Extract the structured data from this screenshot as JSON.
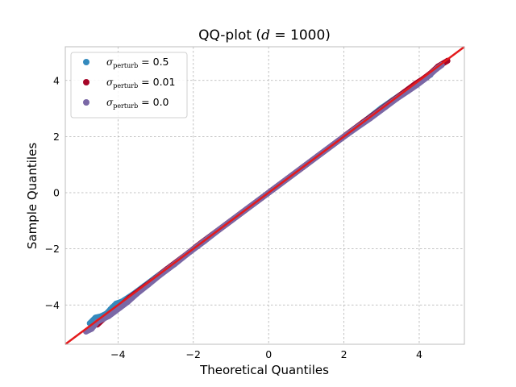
{
  "chart_data": {
    "type": "scatter",
    "title_prefix": "QQ-plot (",
    "title_var": "d",
    "title_eq": " = ",
    "title_val": "1000",
    "title_suffix": ")",
    "xlabel": "Theoretical Quantiles",
    "ylabel": "Sample Quantiles",
    "xlim": [
      -5.4,
      5.2
    ],
    "ylim": [
      -5.4,
      5.2
    ],
    "xticks": [
      -4,
      -2,
      0,
      2,
      4
    ],
    "yticks": [
      -4,
      -2,
      0,
      2,
      4
    ],
    "xtick_labels": [
      "−4",
      "−2",
      "0",
      "2",
      "4"
    ],
    "ytick_labels": [
      "−4",
      "−2",
      "0",
      "2",
      "4"
    ],
    "grid": true,
    "legend_position": "top-left",
    "legend_symbol": "σ",
    "legend_subscript": "perturb",
    "series": [
      {
        "name": "σperturb = 0.5",
        "label_value": " = 0.5",
        "color": "#348ABD",
        "points": [
          [
            -4.75,
            -4.65
          ],
          [
            -4.6,
            -4.45
          ],
          [
            -4.45,
            -4.4
          ],
          [
            -4.3,
            -4.3
          ],
          [
            -4.2,
            -4.15
          ],
          [
            -4.05,
            -3.95
          ],
          [
            -3.9,
            -3.88
          ],
          [
            -3.6,
            -3.62
          ],
          [
            -3.3,
            -3.32
          ],
          [
            -3.0,
            -3.02
          ],
          [
            -2.6,
            -2.62
          ],
          [
            -2.2,
            -2.22
          ],
          [
            -1.8,
            -1.8
          ],
          [
            -1.4,
            -1.4
          ],
          [
            -1.0,
            -1.0
          ],
          [
            -0.6,
            -0.6
          ],
          [
            -0.2,
            -0.2
          ],
          [
            0.2,
            0.2
          ],
          [
            0.6,
            0.6
          ],
          [
            1.0,
            1.0
          ],
          [
            1.4,
            1.4
          ],
          [
            1.8,
            1.8
          ],
          [
            2.2,
            2.2
          ],
          [
            2.6,
            2.6
          ],
          [
            3.0,
            3.02
          ],
          [
            3.3,
            3.3
          ],
          [
            3.6,
            3.58
          ],
          [
            3.85,
            3.82
          ],
          [
            4.05,
            4.0
          ],
          [
            4.3,
            4.2
          ]
        ]
      },
      {
        "name": "σperturb = 0.01",
        "label_value": " = 0.01",
        "color": "#A60628",
        "points": [
          [
            -4.55,
            -4.7
          ],
          [
            -4.35,
            -4.45
          ],
          [
            -4.15,
            -4.25
          ],
          [
            -3.95,
            -4.05
          ],
          [
            -3.7,
            -3.75
          ],
          [
            -3.4,
            -3.45
          ],
          [
            -3.1,
            -3.15
          ],
          [
            -2.7,
            -2.72
          ],
          [
            -2.3,
            -2.32
          ],
          [
            -1.9,
            -1.9
          ],
          [
            -1.5,
            -1.5
          ],
          [
            -1.1,
            -1.1
          ],
          [
            -0.7,
            -0.7
          ],
          [
            -0.3,
            -0.3
          ],
          [
            0.1,
            0.1
          ],
          [
            0.5,
            0.5
          ],
          [
            0.9,
            0.9
          ],
          [
            1.3,
            1.3
          ],
          [
            1.7,
            1.7
          ],
          [
            2.1,
            2.1
          ],
          [
            2.5,
            2.5
          ],
          [
            2.9,
            2.88
          ],
          [
            3.3,
            3.28
          ],
          [
            3.6,
            3.58
          ],
          [
            3.9,
            3.88
          ],
          [
            4.1,
            4.05
          ],
          [
            4.3,
            4.25
          ],
          [
            4.5,
            4.5
          ],
          [
            4.75,
            4.7
          ]
        ]
      },
      {
        "name": "σperturb = 0.0",
        "label_value": " = 0.0",
        "color": "#7A68A6",
        "points": [
          [
            -4.85,
            -4.95
          ],
          [
            -4.7,
            -4.85
          ],
          [
            -4.55,
            -4.6
          ],
          [
            -4.4,
            -4.5
          ],
          [
            -4.25,
            -4.4
          ],
          [
            -4.1,
            -4.25
          ],
          [
            -3.95,
            -4.1
          ],
          [
            -3.75,
            -3.9
          ],
          [
            -3.5,
            -3.6
          ],
          [
            -3.2,
            -3.28
          ],
          [
            -2.9,
            -2.95
          ],
          [
            -2.5,
            -2.55
          ],
          [
            -2.1,
            -2.12
          ],
          [
            -1.7,
            -1.72
          ],
          [
            -1.3,
            -1.3
          ],
          [
            -0.9,
            -0.9
          ],
          [
            -0.5,
            -0.5
          ],
          [
            -0.1,
            -0.1
          ],
          [
            0.3,
            0.3
          ],
          [
            0.7,
            0.7
          ],
          [
            1.1,
            1.1
          ],
          [
            1.5,
            1.5
          ],
          [
            1.9,
            1.9
          ],
          [
            2.3,
            2.28
          ],
          [
            2.7,
            2.65
          ],
          [
            3.1,
            3.05
          ],
          [
            3.4,
            3.35
          ],
          [
            3.7,
            3.62
          ],
          [
            3.95,
            3.85
          ],
          [
            4.2,
            4.1
          ],
          [
            4.45,
            4.4
          ],
          [
            4.6,
            4.55
          ]
        ]
      }
    ],
    "reference_line": {
      "slope": 1,
      "intercept": 0,
      "color": "#e41a1c"
    }
  }
}
